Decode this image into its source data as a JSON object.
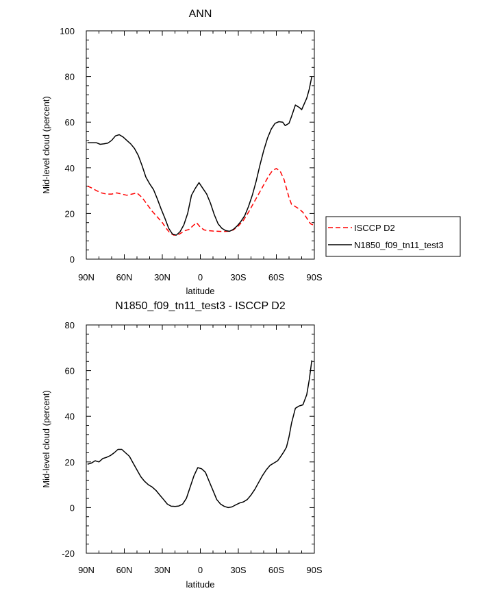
{
  "chart_data": [
    {
      "type": "line",
      "title": "ANN",
      "xlabel": "latitude",
      "ylabel": "Mid-level cloud (percent)",
      "xlim": [
        90,
        -90
      ],
      "ylim": [
        0,
        100
      ],
      "xticks": [
        {
          "value": 90,
          "label": "90N"
        },
        {
          "value": 60,
          "label": "60N"
        },
        {
          "value": 30,
          "label": "30N"
        },
        {
          "value": 0,
          "label": "0"
        },
        {
          "value": -30,
          "label": "30S"
        },
        {
          "value": -60,
          "label": "60S"
        },
        {
          "value": -90,
          "label": "90S"
        }
      ],
      "yticks": [
        0,
        20,
        40,
        60,
        80,
        100
      ],
      "legend_position": "right",
      "series": [
        {
          "name": "ISCCP D2",
          "color": "#ff0000",
          "style": "dashed",
          "points": [
            [
              89,
              32
            ],
            [
              85,
              31
            ],
            [
              82,
              30
            ],
            [
              78,
              29
            ],
            [
              74,
              28.5
            ],
            [
              70,
              28.5
            ],
            [
              66,
              29
            ],
            [
              62,
              28.5
            ],
            [
              58,
              28
            ],
            [
              54,
              28.5
            ],
            [
              50,
              29
            ],
            [
              46,
              27
            ],
            [
              42,
              24
            ],
            [
              38,
              21
            ],
            [
              34,
              18.5
            ],
            [
              30,
              16
            ],
            [
              27,
              13.5
            ],
            [
              24,
              11.5
            ],
            [
              21,
              10.5
            ],
            [
              18,
              10.5
            ],
            [
              15,
              11.5
            ],
            [
              12,
              12.5
            ],
            [
              9,
              13
            ],
            [
              6,
              14.5
            ],
            [
              3,
              16
            ],
            [
              0,
              14
            ],
            [
              -3,
              12.8
            ],
            [
              -6,
              12.5
            ],
            [
              -10,
              12.3
            ],
            [
              -14,
              12.2
            ],
            [
              -18,
              12.1
            ],
            [
              -22,
              12.2
            ],
            [
              -26,
              12.8
            ],
            [
              -30,
              14.5
            ],
            [
              -34,
              17
            ],
            [
              -38,
              20.5
            ],
            [
              -42,
              24.5
            ],
            [
              -46,
              28.5
            ],
            [
              -50,
              32.5
            ],
            [
              -54,
              36.5
            ],
            [
              -57,
              38.8
            ],
            [
              -60,
              39.7
            ],
            [
              -63,
              38.5
            ],
            [
              -66,
              35
            ],
            [
              -68,
              31
            ],
            [
              -70,
              27
            ],
            [
              -72,
              24
            ],
            [
              -75,
              23
            ],
            [
              -78,
              22
            ],
            [
              -81,
              20.5
            ],
            [
              -84,
              18
            ],
            [
              -87,
              15.5
            ],
            [
              -89,
              15
            ]
          ]
        },
        {
          "name": "N1850_f09_tn11_test3",
          "color": "#000000",
          "style": "solid",
          "points": [
            [
              89,
              51
            ],
            [
              85,
              51
            ],
            [
              82,
              51
            ],
            [
              79,
              50.3
            ],
            [
              76,
              50.5
            ],
            [
              73,
              50.8
            ],
            [
              70,
              52
            ],
            [
              67,
              54
            ],
            [
              64,
              54.5
            ],
            [
              61,
              53.5
            ],
            [
              58,
              52
            ],
            [
              55,
              50.5
            ],
            [
              52,
              48.5
            ],
            [
              49,
              45.5
            ],
            [
              46,
              41
            ],
            [
              43,
              36
            ],
            [
              40,
              33
            ],
            [
              37,
              30.5
            ],
            [
              34,
              26.5
            ],
            [
              31,
              22
            ],
            [
              28,
              18
            ],
            [
              25,
              13.5
            ],
            [
              22,
              11
            ],
            [
              19,
              10.5
            ],
            [
              16,
              12
            ],
            [
              13,
              15
            ],
            [
              10,
              20
            ],
            [
              7,
              28
            ],
            [
              4,
              31
            ],
            [
              1,
              33.5
            ],
            [
              -2,
              31
            ],
            [
              -5,
              28.5
            ],
            [
              -8,
              24.5
            ],
            [
              -11,
              19.5
            ],
            [
              -14,
              15.5
            ],
            [
              -17,
              13.5
            ],
            [
              -20,
              12.5
            ],
            [
              -23,
              12.2
            ],
            [
              -26,
              13
            ],
            [
              -29,
              14.5
            ],
            [
              -32,
              16.5
            ],
            [
              -35,
              19
            ],
            [
              -38,
              23
            ],
            [
              -41,
              28
            ],
            [
              -44,
              34
            ],
            [
              -47,
              41
            ],
            [
              -50,
              47.5
            ],
            [
              -53,
              53
            ],
            [
              -56,
              57
            ],
            [
              -59,
              59.5
            ],
            [
              -62,
              60.2
            ],
            [
              -65,
              60
            ],
            [
              -67,
              58.5
            ],
            [
              -70,
              59.5
            ],
            [
              -72,
              62.5
            ],
            [
              -75,
              67.5
            ],
            [
              -78,
              66.5
            ],
            [
              -80,
              65.5
            ],
            [
              -82,
              68
            ],
            [
              -84,
              70.5
            ],
            [
              -86,
              74.5
            ],
            [
              -88,
              80
            ]
          ]
        }
      ]
    },
    {
      "type": "line",
      "title": "N1850_f09_tn11_test3 - ISCCP D2",
      "xlabel": "latitude",
      "ylabel": "Mid-level cloud (percent)",
      "xlim": [
        90,
        -90
      ],
      "ylim": [
        -20,
        80
      ],
      "xticks": [
        {
          "value": 90,
          "label": "90N"
        },
        {
          "value": 60,
          "label": "60N"
        },
        {
          "value": 30,
          "label": "30N"
        },
        {
          "value": 0,
          "label": "0"
        },
        {
          "value": -30,
          "label": "30S"
        },
        {
          "value": -60,
          "label": "60S"
        },
        {
          "value": -90,
          "label": "90S"
        }
      ],
      "yticks": [
        -20,
        0,
        20,
        40,
        60,
        80
      ],
      "series": [
        {
          "color": "#000000",
          "style": "solid",
          "points": [
            [
              89,
              19
            ],
            [
              86,
              19.5
            ],
            [
              83,
              20.5
            ],
            [
              80,
              20
            ],
            [
              77,
              21.5
            ],
            [
              74,
              22
            ],
            [
              71,
              22.8
            ],
            [
              68,
              24
            ],
            [
              65,
              25.5
            ],
            [
              62,
              25.5
            ],
            [
              59,
              24
            ],
            [
              56,
              22.5
            ],
            [
              53,
              19.5
            ],
            [
              50,
              16.5
            ],
            [
              47,
              13.5
            ],
            [
              44,
              11.5
            ],
            [
              41,
              10
            ],
            [
              38,
              9
            ],
            [
              35,
              7.5
            ],
            [
              32,
              5.5
            ],
            [
              29,
              3.5
            ],
            [
              26,
              1.5
            ],
            [
              23,
              0.6
            ],
            [
              20,
              0.5
            ],
            [
              17,
              0.7
            ],
            [
              14,
              1.5
            ],
            [
              11,
              4
            ],
            [
              8,
              9
            ],
            [
              5,
              14
            ],
            [
              2,
              17.5
            ],
            [
              -1,
              17
            ],
            [
              -4,
              15.5
            ],
            [
              -7,
              11.5
            ],
            [
              -10,
              7.5
            ],
            [
              -13,
              3.5
            ],
            [
              -16,
              1.5
            ],
            [
              -19,
              0.5
            ],
            [
              -22,
              0
            ],
            [
              -25,
              0.3
            ],
            [
              -28,
              1.2
            ],
            [
              -31,
              2
            ],
            [
              -34,
              2.5
            ],
            [
              -37,
              3.5
            ],
            [
              -40,
              5.5
            ],
            [
              -43,
              8
            ],
            [
              -46,
              11
            ],
            [
              -49,
              14
            ],
            [
              -52,
              16.5
            ],
            [
              -55,
              18.5
            ],
            [
              -58,
              19.5
            ],
            [
              -61,
              20.5
            ],
            [
              -63,
              22
            ],
            [
              -66,
              24.5
            ],
            [
              -68,
              26.5
            ],
            [
              -70,
              31
            ],
            [
              -72,
              37
            ],
            [
              -75,
              43.5
            ],
            [
              -78,
              44.5
            ],
            [
              -81,
              45
            ],
            [
              -84,
              49.5
            ],
            [
              -86,
              56
            ],
            [
              -88,
              64.5
            ]
          ]
        }
      ]
    }
  ]
}
